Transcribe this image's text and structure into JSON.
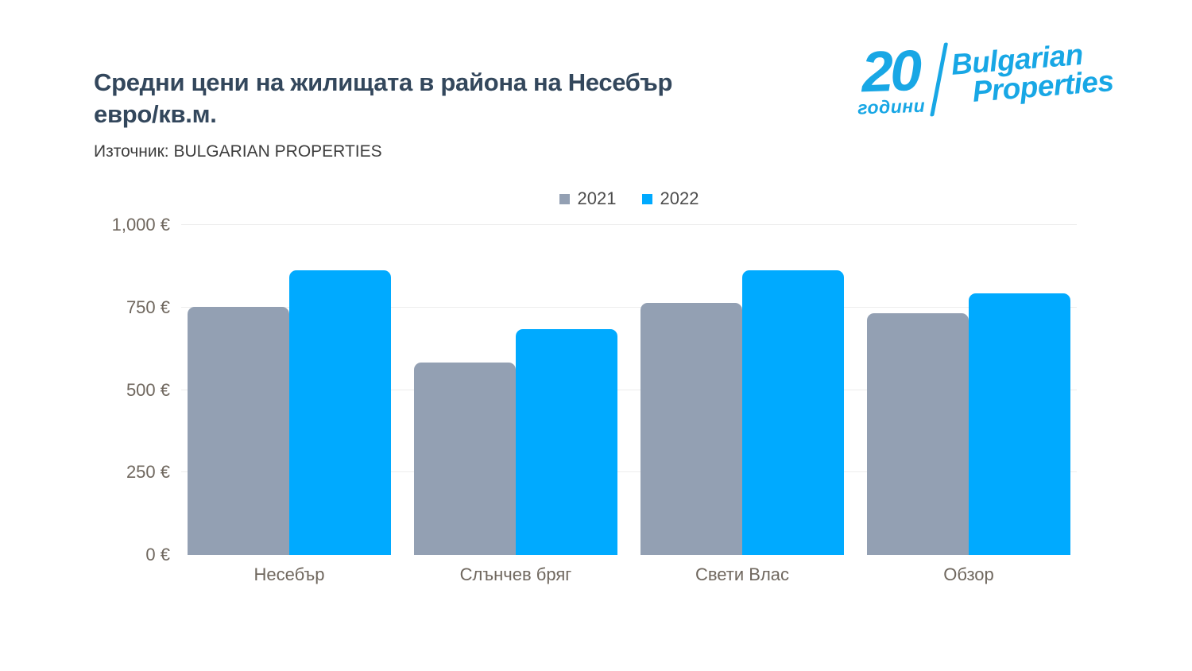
{
  "header": {
    "title_line1": "Средни цени на жилищата в района на Несебър",
    "title_line2": "евро/кв.м.",
    "source": "Източник: BULGARIAN PROPERTIES"
  },
  "logo": {
    "anniversary_number": "20",
    "anniversary_word": "години",
    "brand_line1": "Bulgarian",
    "brand_line2": "Properties",
    "color": "#18a7e5"
  },
  "chart_data": {
    "type": "bar",
    "title": "Средни цени на жилищата в района на Несебър евро/кв.м.",
    "source": "Източник: BULGARIAN PROPERTIES",
    "categories": [
      "Несебър",
      "Слънчев бряг",
      "Свети Влас",
      "Обзор"
    ],
    "series": [
      {
        "name": "2021",
        "color": "#93a0b3",
        "values": [
          752,
          582,
          764,
          733
        ]
      },
      {
        "name": "2022",
        "color": "#00aaff",
        "values": [
          863,
          685,
          863,
          793
        ]
      }
    ],
    "ylim": [
      0,
      1000
    ],
    "y_ticks": [
      {
        "value": 0,
        "label": "0 €"
      },
      {
        "value": 250,
        "label": "250 €"
      },
      {
        "value": 500,
        "label": "500 €"
      },
      {
        "value": 750,
        "label": "750 €"
      },
      {
        "value": 1000,
        "label": "1,000 €"
      }
    ],
    "legend_position": "top-center",
    "grid": true,
    "unit": "евро/кв.м."
  },
  "colors": {
    "title": "#33475c",
    "source_text": "#3d3d3d",
    "axis_text": "#6f675e",
    "legend_text": "#4d4d4d",
    "gridline": "#ededed",
    "background": "#ffffff"
  }
}
